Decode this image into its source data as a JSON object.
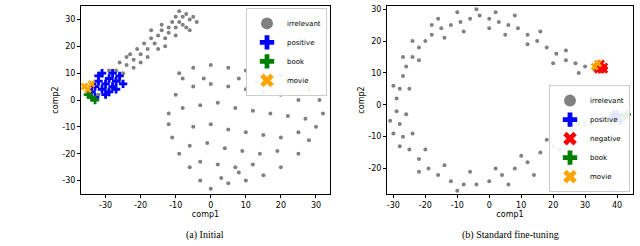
{
  "chart_data": [
    {
      "type": "scatter",
      "title": "(a) Initial",
      "x_label": "comp1",
      "y_label": "comp2",
      "xlim": [
        -37,
        34
      ],
      "ylim": [
        -35,
        35
      ],
      "xticks": [
        -30,
        -20,
        -10,
        0,
        10,
        20,
        30
      ],
      "yticks": [
        -30,
        -20,
        -10,
        0,
        10,
        20,
        30
      ],
      "grid": false,
      "legend": "upper right",
      "series": [
        {
          "name": "irrelevant",
          "color": "#808080",
          "marker": "circle",
          "x": [
            -32,
            -30,
            -28,
            -31,
            -27,
            -25,
            -24,
            -26,
            -22,
            -23,
            -20,
            -21,
            -18,
            -19,
            -16,
            -17,
            -15,
            -13,
            -14,
            -12,
            -12,
            -10,
            -11,
            -9,
            -8,
            -10,
            -7,
            -6,
            -8,
            -5,
            -20,
            -18,
            -15,
            -13,
            -10,
            -7,
            -6,
            -24,
            -22,
            -26,
            -29,
            -17,
            -14,
            -9,
            -4,
            -12,
            -10,
            -8,
            -5,
            0,
            5,
            10,
            15,
            20,
            24,
            28,
            31,
            32,
            30,
            28,
            25,
            20,
            15,
            10,
            5,
            0,
            -3,
            -6,
            -9,
            -11,
            -12,
            -5,
            0,
            5,
            10,
            15,
            20,
            25,
            -8,
            -3,
            2,
            7,
            12,
            17,
            22,
            27,
            -5,
            0,
            5,
            10,
            15,
            20,
            25,
            -6,
            -1,
            4,
            9,
            14,
            19,
            -3,
            2,
            7,
            12,
            3,
            8,
            -2,
            8,
            18,
            -9,
            13
          ],
          "y": [
            2,
            4,
            8,
            9,
            11,
            10,
            13,
            14,
            15,
            17,
            17,
            19,
            19,
            21,
            21,
            23,
            24,
            23,
            26,
            25,
            27,
            27,
            29,
            29,
            31,
            31,
            32,
            30,
            28,
            31,
            14,
            16,
            19,
            20,
            24,
            27,
            26,
            16,
            12,
            7,
            11,
            26,
            28,
            33,
            29,
            -5,
            2,
            8,
            12,
            13,
            12,
            11,
            10,
            9,
            7,
            4,
            0,
            -5,
            -10,
            -15,
            -20,
            -25,
            -28,
            -30,
            -31,
            -33,
            -30,
            -25,
            -20,
            -14,
            -9,
            5,
            6,
            5,
            4,
            3,
            2,
            0,
            -3,
            -2,
            -1,
            -3,
            -4,
            -5,
            -6,
            -7,
            -10,
            -9,
            -11,
            -12,
            -13,
            -14,
            -12,
            -17,
            -16,
            -18,
            -19,
            -20,
            -19,
            -23,
            -24,
            -25,
            -24,
            -29,
            -27,
            8,
            8,
            6,
            10,
            7
          ]
        },
        {
          "name": "positive",
          "color": "#0000ff",
          "marker": "plus",
          "x": [
            -34,
            -33,
            -32,
            -31,
            -30,
            -29,
            -28,
            -27,
            -26,
            -30,
            -32,
            -28,
            -29,
            -31,
            -27,
            -33,
            -25
          ],
          "y": [
            3,
            5,
            7,
            4,
            6,
            8,
            5,
            7,
            9,
            2,
            9,
            10,
            3,
            10,
            4,
            1,
            6
          ]
        },
        {
          "name": "book",
          "color": "#008000",
          "marker": "plus",
          "x": [
            -34,
            -33,
            -35
          ],
          "y": [
            1,
            0,
            2
          ]
        },
        {
          "name": "movie",
          "color": "#ffa500",
          "marker": "x",
          "x": [
            -35,
            -36,
            -34
          ],
          "y": [
            4,
            5,
            6
          ]
        }
      ]
    },
    {
      "type": "scatter",
      "title": "(b) Standard fine-tuning",
      "x_label": "comp1",
      "y_label": "comp2",
      "xlim": [
        -32,
        45
      ],
      "ylim": [
        -28,
        31
      ],
      "xticks": [
        -30,
        -20,
        -10,
        0,
        10,
        20,
        30,
        40
      ],
      "yticks": [
        -20,
        -10,
        0,
        10,
        20,
        30
      ],
      "grid": false,
      "legend": "lower right",
      "series": [
        {
          "name": "irrelevant",
          "color": "#808080",
          "marker": "circle",
          "x": [
            33,
            30,
            27,
            24,
            21,
            18,
            15,
            12,
            9,
            6,
            3,
            0,
            -3,
            -6,
            -9,
            -12,
            -15,
            -18,
            -20,
            -22,
            -24,
            -26,
            -27,
            -28,
            -29,
            -29,
            -28,
            -27,
            -25,
            -22,
            -19,
            -16,
            -12,
            -8,
            -4,
            0,
            4,
            8,
            12,
            16,
            20,
            24,
            28,
            32,
            36,
            0,
            -4,
            -10,
            -14,
            -18,
            -22,
            -24,
            -25,
            -30,
            -26,
            -31,
            -24,
            -28,
            -20,
            -22,
            -14,
            -10,
            -6,
            2,
            6,
            10,
            14,
            18,
            22,
            26,
            30,
            5,
            8,
            12,
            16,
            20,
            24,
            28,
            -8,
            -16,
            -30,
            -27,
            2
          ],
          "y": [
            11,
            12,
            13,
            14,
            16,
            18,
            20,
            22,
            24,
            25,
            26,
            27,
            28,
            27,
            26,
            25,
            24,
            22,
            20,
            18,
            15,
            12,
            9,
            5,
            2,
            -2,
            -6,
            -10,
            -14,
            -17,
            -20,
            -22,
            -24,
            -25,
            -25,
            -24,
            -22,
            -20,
            -18,
            -15,
            -13,
            -10,
            -6,
            -6,
            -5,
            24,
            30,
            29,
            21,
            25,
            14,
            20,
            5,
            6,
            -3,
            -5,
            -9,
            -13,
            -14,
            -21,
            -19,
            -27,
            -21,
            -20,
            -25,
            -16,
            -22,
            -11,
            -14,
            -6,
            -6,
            22,
            28,
            19,
            23,
            13,
            17,
            10,
            23,
            27,
            -9,
            15,
            29
          ]
        },
        {
          "name": "positive",
          "color": "#0000ff",
          "marker": "plus",
          "x": [
            39,
            40,
            41,
            40,
            39,
            41
          ],
          "y": [
            -4,
            -3,
            -5,
            -4,
            -3,
            -4
          ]
        },
        {
          "name": "negative",
          "color": "#ff0000",
          "marker": "x",
          "x": [
            34,
            35,
            36,
            35,
            34,
            36
          ],
          "y": [
            12,
            11,
            12,
            13,
            11,
            11
          ]
        },
        {
          "name": "book",
          "color": "#008000",
          "marker": "plus",
          "x": [
            42,
            43
          ],
          "y": [
            -4,
            -3
          ]
        },
        {
          "name": "movie",
          "color": "#ffa500",
          "marker": "x",
          "x": [
            33,
            34
          ],
          "y": [
            12,
            13
          ]
        }
      ]
    }
  ]
}
